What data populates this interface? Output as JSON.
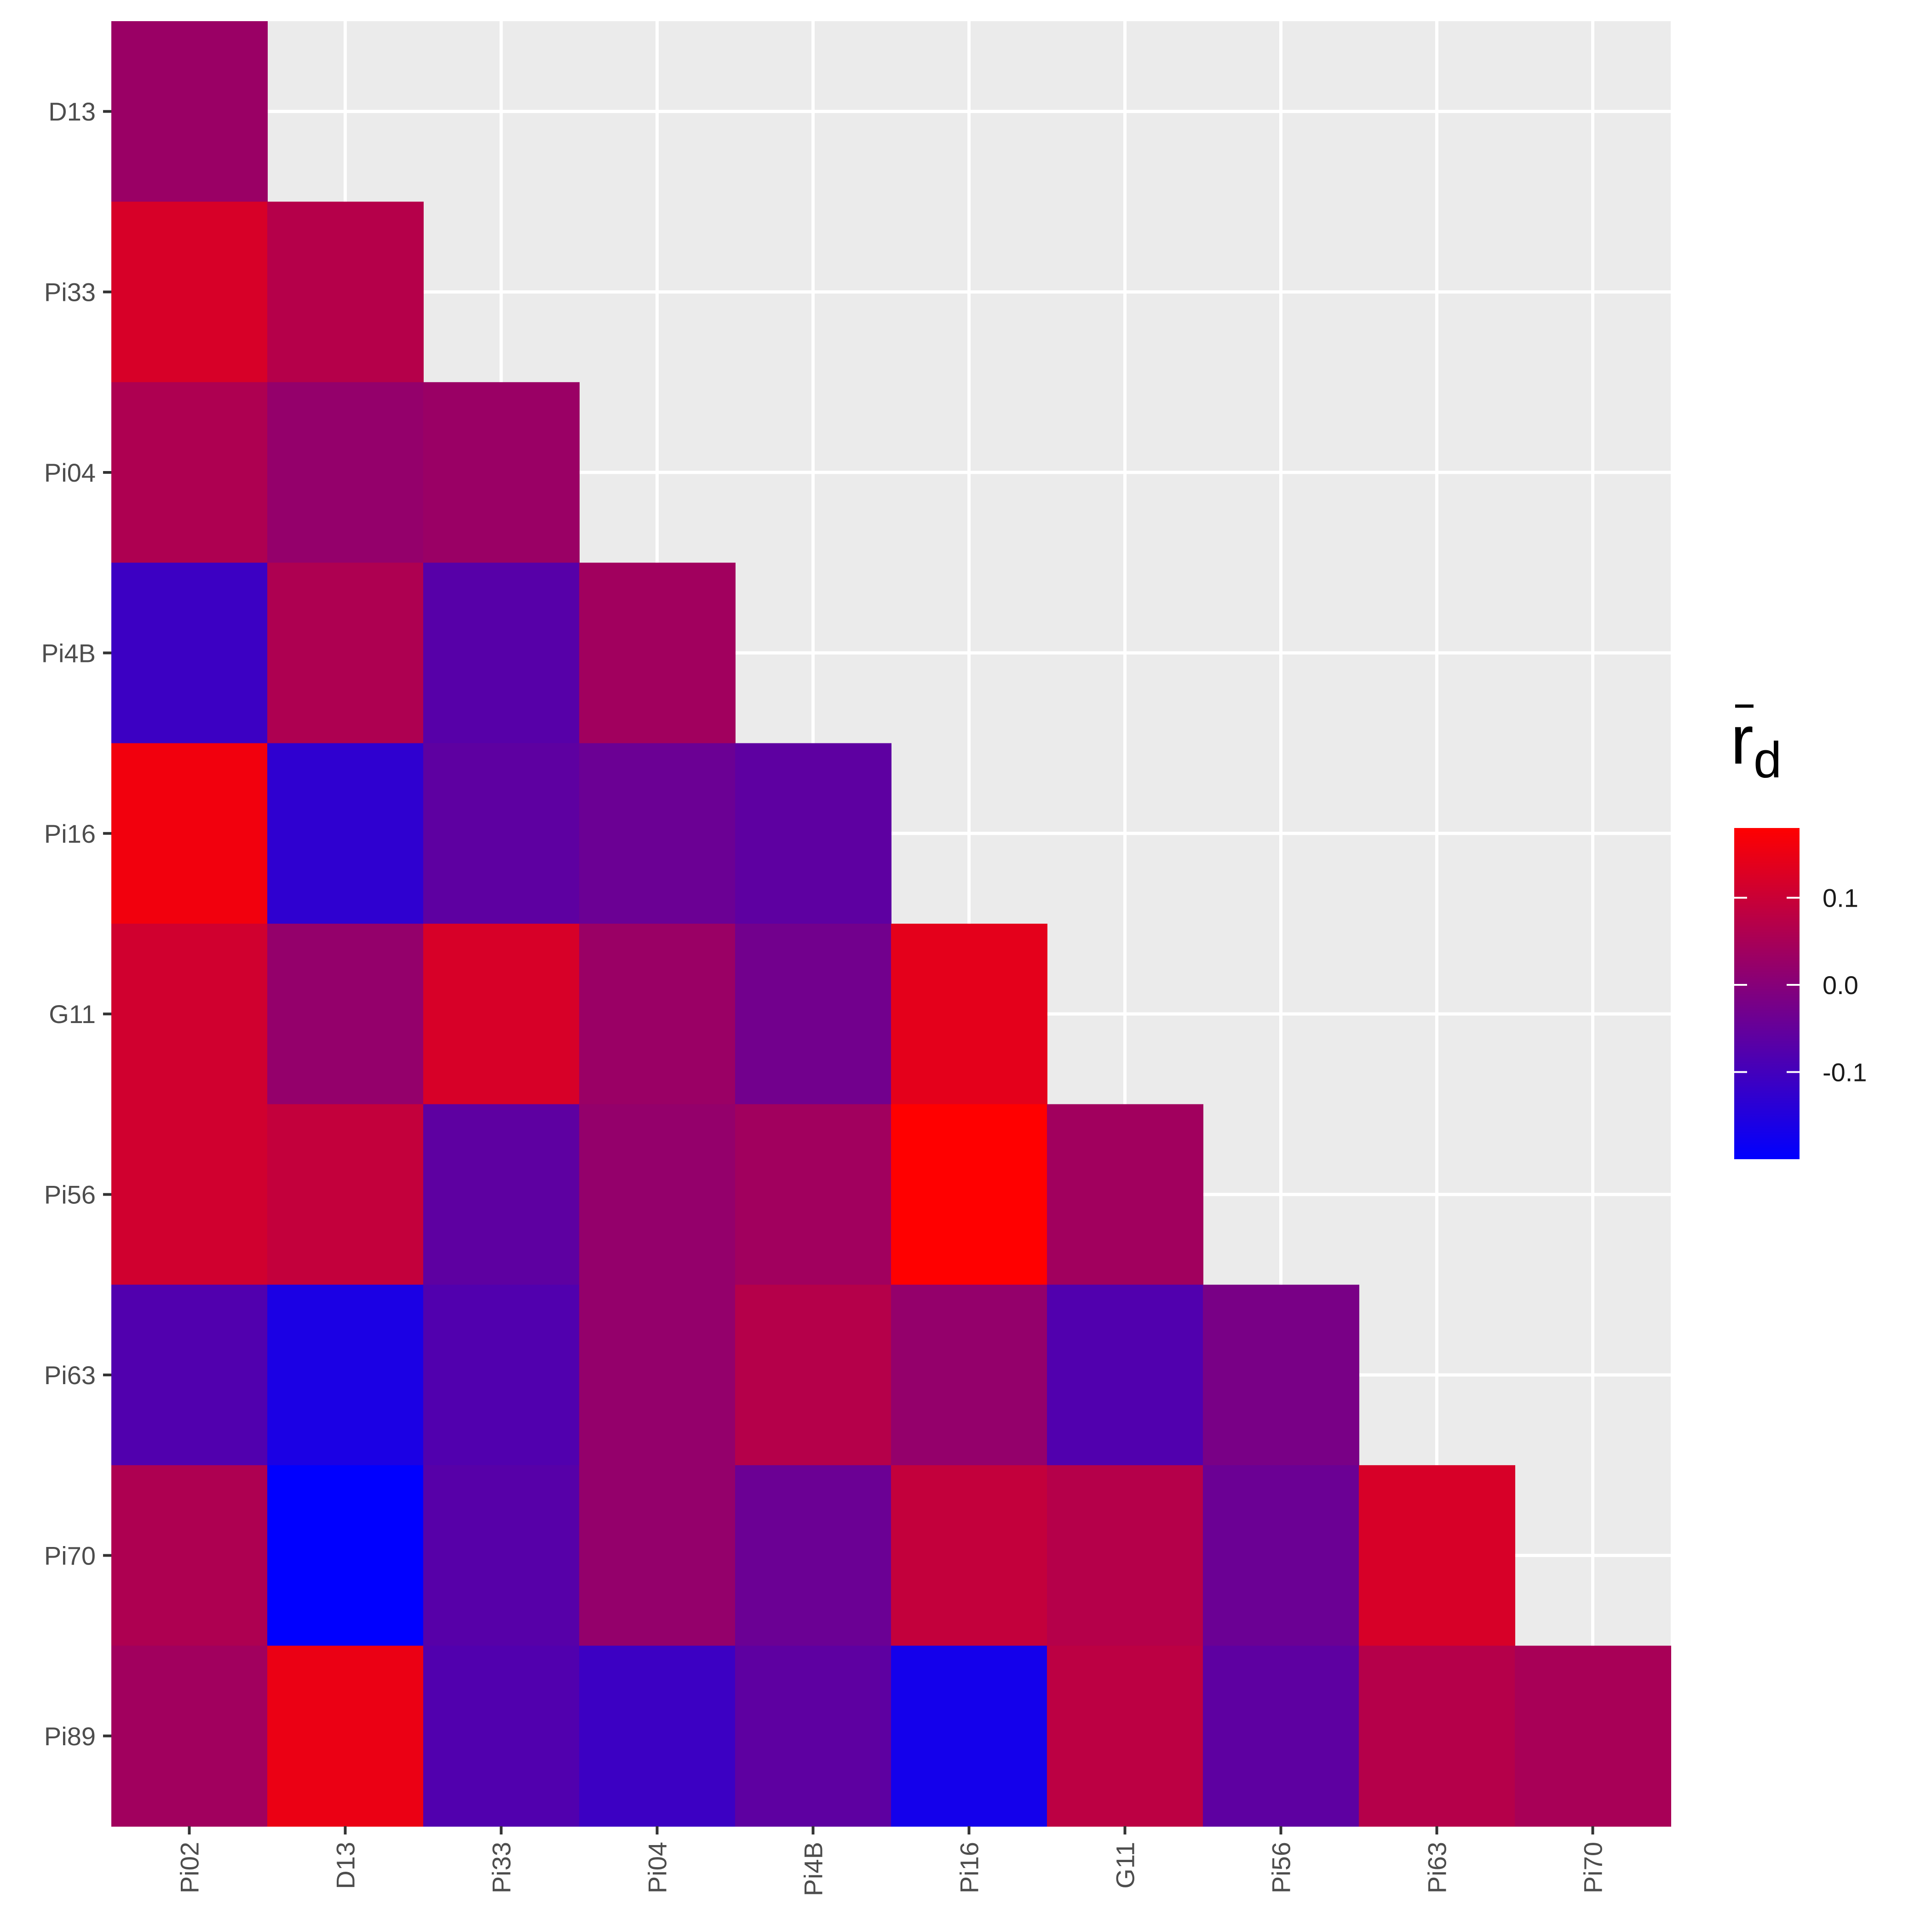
{
  "chart_data": {
    "type": "heatmap",
    "x_categories": [
      "Pi02",
      "D13",
      "Pi33",
      "Pi04",
      "Pi4B",
      "Pi16",
      "G11",
      "Pi56",
      "Pi63",
      "Pi70"
    ],
    "y_categories": [
      "D13",
      "Pi33",
      "Pi04",
      "Pi4B",
      "Pi16",
      "G11",
      "Pi56",
      "Pi63",
      "Pi70",
      "Pi89"
    ],
    "rows": [
      {
        "y": "D13",
        "values": [
          0.03
        ]
      },
      {
        "y": "Pi33",
        "values": [
          0.12,
          0.07
        ]
      },
      {
        "y": "Pi04",
        "values": [
          0.06,
          0.02,
          0.03
        ]
      },
      {
        "y": "Pi4B",
        "values": [
          -0.11,
          0.06,
          -0.07,
          0.04
        ]
      },
      {
        "y": "Pi16",
        "values": [
          0.16,
          -0.13,
          -0.06,
          -0.04,
          -0.06
        ]
      },
      {
        "y": "G11",
        "values": [
          0.11,
          0.02,
          0.12,
          0.03,
          -0.03,
          0.14
        ]
      },
      {
        "y": "Pi56",
        "values": [
          0.11,
          0.09,
          -0.06,
          0.02,
          0.04,
          0.18,
          0.04
        ]
      },
      {
        "y": "Pi63",
        "values": [
          -0.08,
          -0.16,
          -0.08,
          0.02,
          0.07,
          0.02,
          -0.08,
          -0.02
        ]
      },
      {
        "y": "Pi70",
        "values": [
          0.06,
          -0.2,
          -0.07,
          0.02,
          -0.04,
          0.09,
          0.07,
          -0.04,
          0.12
        ]
      },
      {
        "y": "Pi89",
        "values": [
          0.04,
          0.15,
          -0.08,
          -0.11,
          -0.06,
          -0.17,
          0.08,
          -0.06,
          0.07,
          0.05
        ]
      }
    ],
    "legend": {
      "title_main": "r",
      "title_sub": "d",
      "title_overbar": true,
      "breaks": [
        0.1,
        0.0,
        -0.1
      ],
      "break_labels": [
        "0.1",
        "0.0",
        "-0.1"
      ],
      "limits": [
        -0.2,
        0.18
      ],
      "low_color": "#0000FF",
      "high_color": "#FF0000"
    },
    "panel_background": "#EBEBEB",
    "grid_color": "#FFFFFF",
    "grid": true,
    "legend_position": "right"
  }
}
